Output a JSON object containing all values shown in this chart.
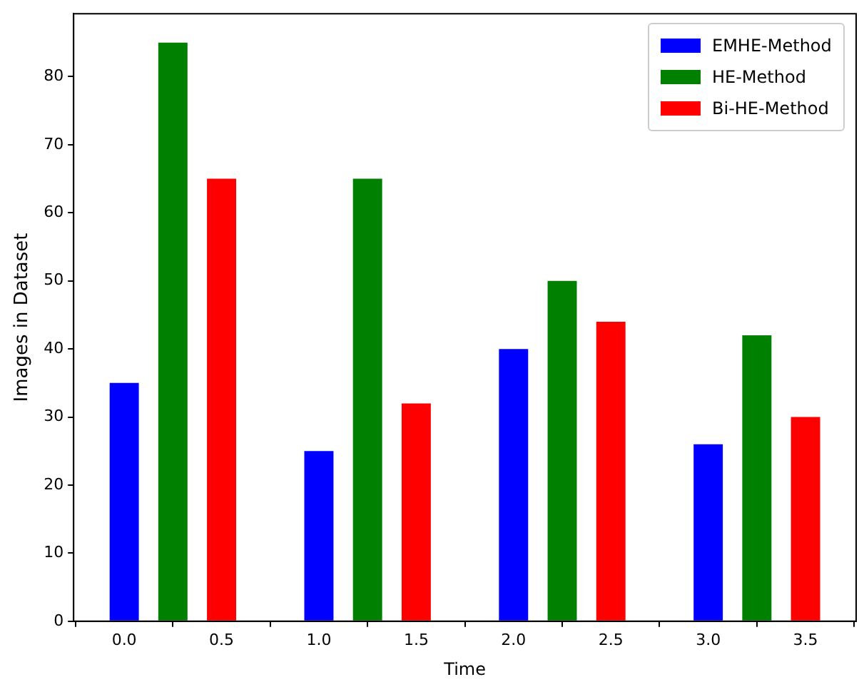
{
  "chart_data": {
    "type": "bar",
    "xlabel": "Time",
    "ylabel": "Images in Dataset",
    "series": [
      {
        "name": "EMHE-Method",
        "color": "#0000ff",
        "x": [
          0,
          1,
          2,
          3
        ],
        "values": [
          35,
          25,
          40,
          26
        ]
      },
      {
        "name": "HE-Method",
        "color": "#008000",
        "x": [
          0.25,
          1.25,
          2.25,
          3.25
        ],
        "values": [
          85,
          65,
          50,
          42
        ]
      },
      {
        "name": "Bi-HE-Method",
        "color": "#ff0000",
        "x": [
          0.5,
          1.5,
          2.5,
          3.5
        ],
        "values": [
          65,
          32,
          44,
          30
        ]
      }
    ],
    "xlim": [
      -0.26,
      3.76
    ],
    "xticks": [
      {
        "value": 0,
        "label": "0.0"
      },
      {
        "value": 0.5,
        "label": "0.5"
      },
      {
        "value": 1,
        "label": "1.0"
      },
      {
        "value": 1.5,
        "label": "1.5"
      },
      {
        "value": 2,
        "label": "2.0"
      },
      {
        "value": 2.5,
        "label": "2.5"
      },
      {
        "value": 3,
        "label": "3.0"
      },
      {
        "value": 3.5,
        "label": "3.5"
      }
    ],
    "ylim": [
      0,
      89.25
    ],
    "yticks": [
      0,
      10,
      20,
      30,
      40,
      50,
      60,
      70,
      80
    ],
    "grid": false,
    "legend": "top right"
  }
}
